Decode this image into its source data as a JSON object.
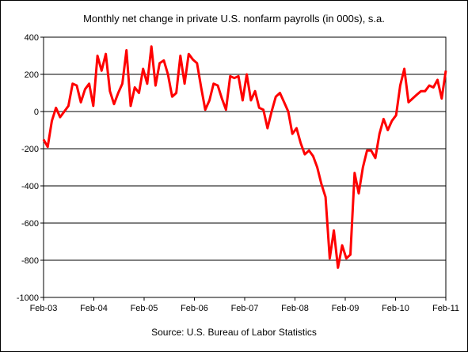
{
  "chart_data": {
    "type": "line",
    "title": "Monthly net change in private U.S. nonfarm payrolls (in 000s), s.a.",
    "source": "Source: U.S. Bureau of Labor Statistics",
    "ylim": [
      -1000,
      400
    ],
    "yticks": [
      -1000,
      -800,
      -600,
      -400,
      -200,
      0,
      200,
      400
    ],
    "xticks": [
      "Feb-03",
      "Feb-04",
      "Feb-05",
      "Feb-06",
      "Feb-07",
      "Feb-08",
      "Feb-09",
      "Feb-10",
      "Feb-11"
    ],
    "x_start": "Feb-03",
    "x_end": "Feb-11",
    "grid": "horizontal",
    "legend": "none",
    "line_color": "#ff0000",
    "series": [
      {
        "values": [
          -150,
          -190,
          -50,
          20,
          -30,
          0,
          30,
          150,
          140,
          50,
          120,
          150,
          30,
          300,
          220,
          310,
          110,
          40,
          100,
          150,
          330,
          30,
          130,
          100,
          230,
          150,
          350,
          140,
          260,
          275,
          200,
          80,
          100,
          300,
          150,
          310,
          280,
          260,
          130,
          10,
          60,
          150,
          140,
          70,
          10,
          190,
          180,
          190,
          60,
          200,
          60,
          110,
          20,
          10,
          -90,
          0,
          80,
          100,
          50,
          0,
          -120,
          -90,
          -170,
          -230,
          -210,
          -240,
          -300,
          -390,
          -460,
          -790,
          -640,
          -840,
          -720,
          -790,
          -770,
          -330,
          -440,
          -300,
          -210,
          -210,
          -250,
          -120,
          -40,
          -100,
          -50,
          -20,
          140,
          230,
          50,
          70,
          90,
          110,
          110,
          140,
          130,
          170,
          70,
          220
        ]
      }
    ]
  }
}
